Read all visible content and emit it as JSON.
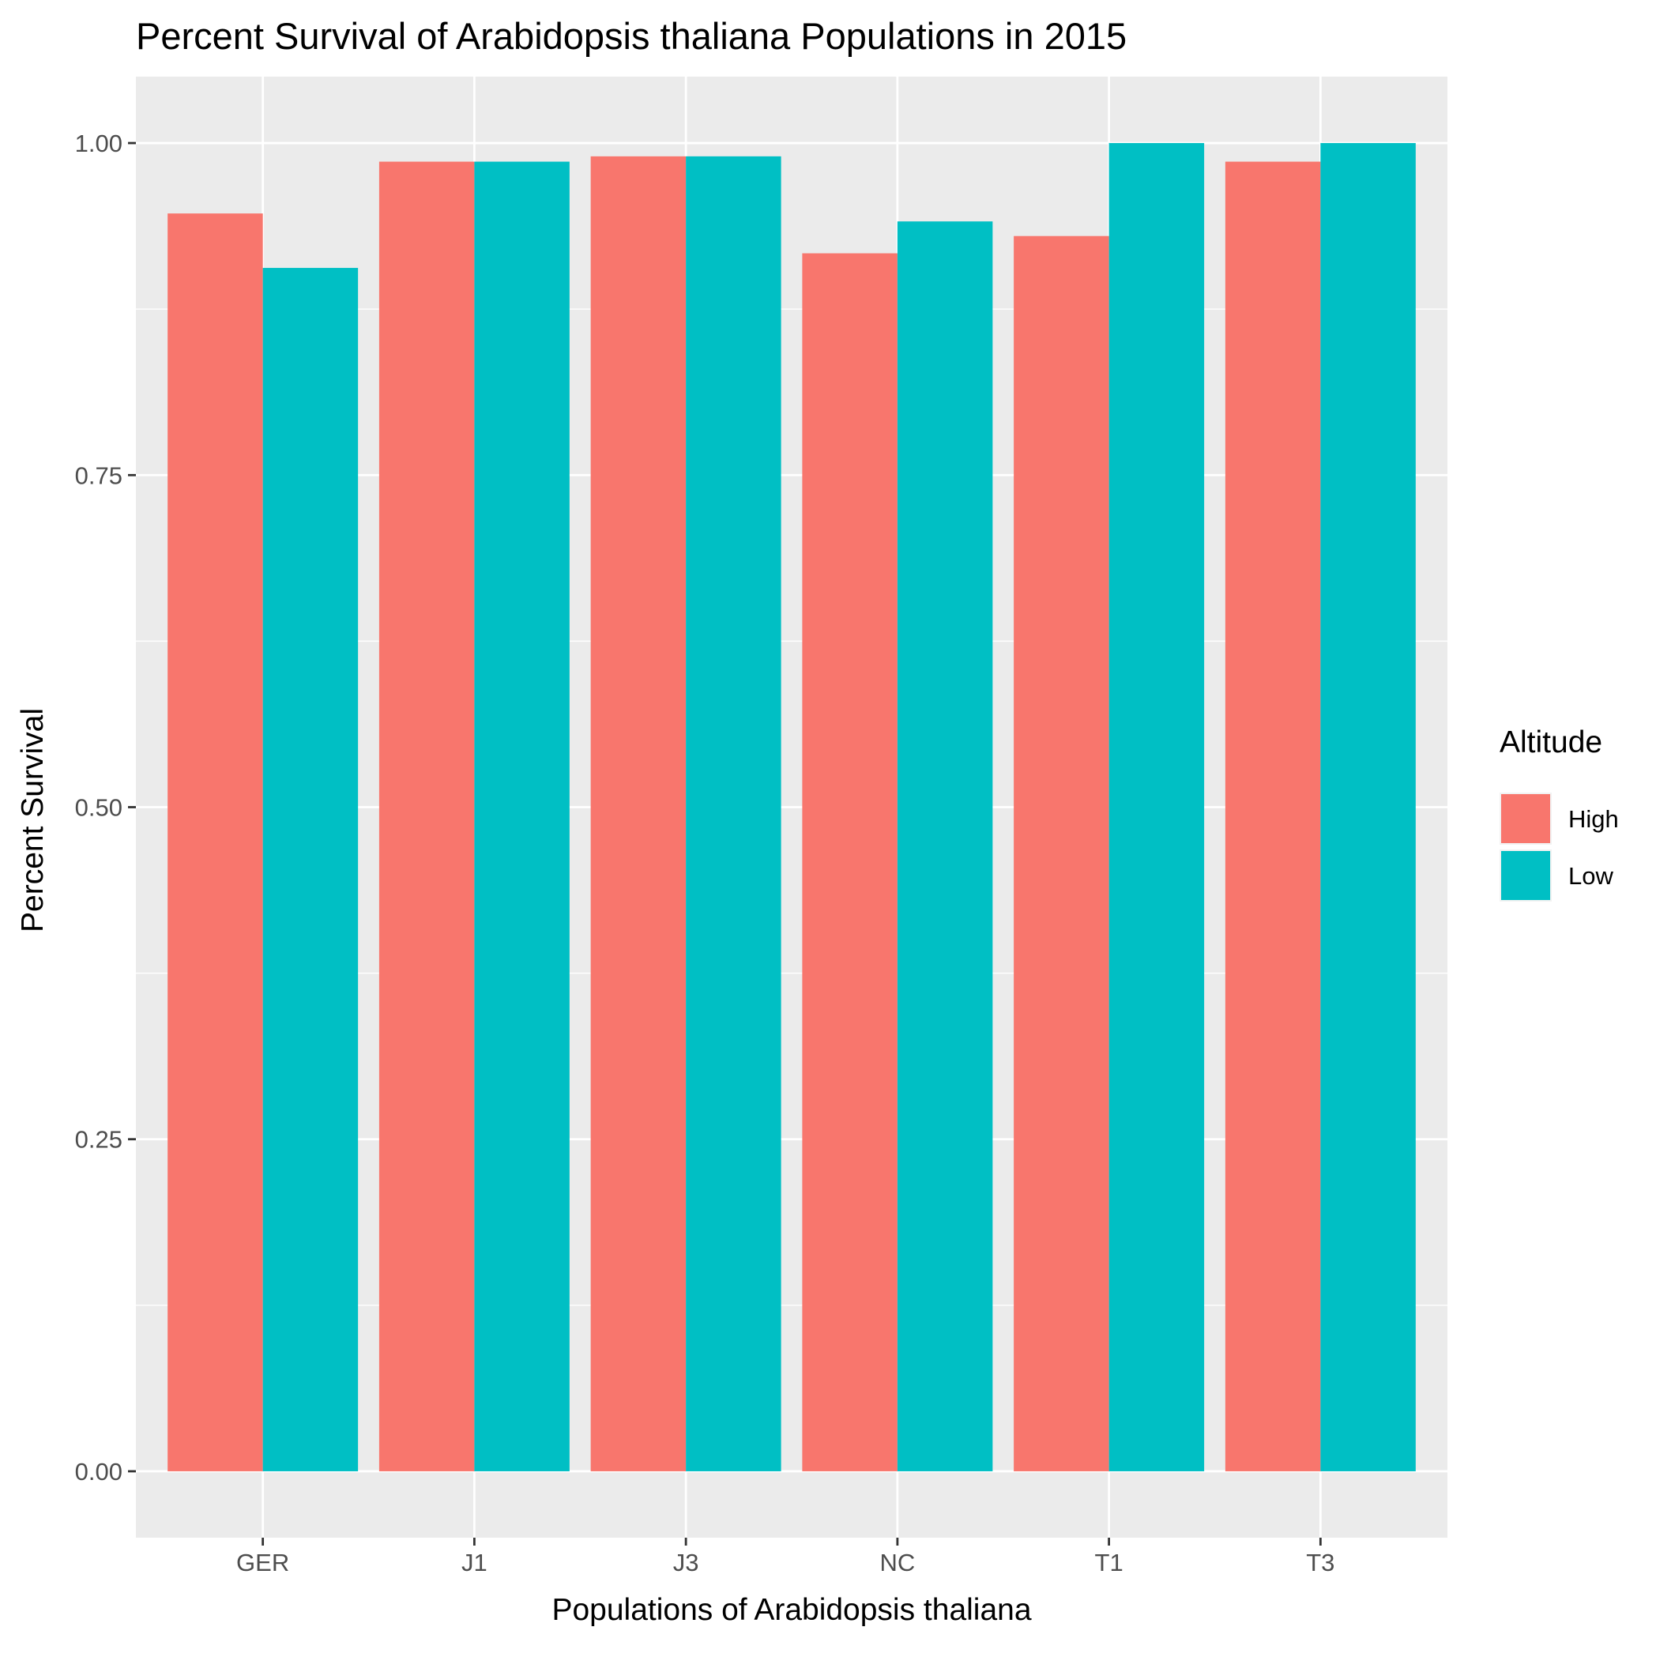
{
  "chart_data": {
    "type": "bar",
    "title": "Percent Survival of Arabidopsis thaliana Populations in 2015",
    "xlabel": "Populations of Arabidopsis thaliana",
    "ylabel": "Percent Survival",
    "categories": [
      "GER",
      "J1",
      "J3",
      "NC",
      "T1",
      "T3"
    ],
    "series": [
      {
        "name": "High",
        "color": "#F8766D",
        "values": [
          0.947,
          0.986,
          0.99,
          0.917,
          0.93,
          0.986
        ]
      },
      {
        "name": "Low",
        "color": "#00BFC4",
        "values": [
          0.906,
          0.986,
          0.99,
          0.941,
          1.0,
          1.0
        ]
      }
    ],
    "ylim": [
      -0.05,
      1.05
    ],
    "yticks": [
      0,
      0.25,
      0.5,
      0.75,
      1.0
    ],
    "ytick_labels": [
      "0.00",
      "0.25",
      "0.50",
      "0.75",
      "1.00"
    ],
    "grid": true,
    "legend": {
      "title": "Altitude",
      "position": "right"
    },
    "panel_background": "#EBEBEB",
    "grid_color": "#FFFFFF"
  }
}
